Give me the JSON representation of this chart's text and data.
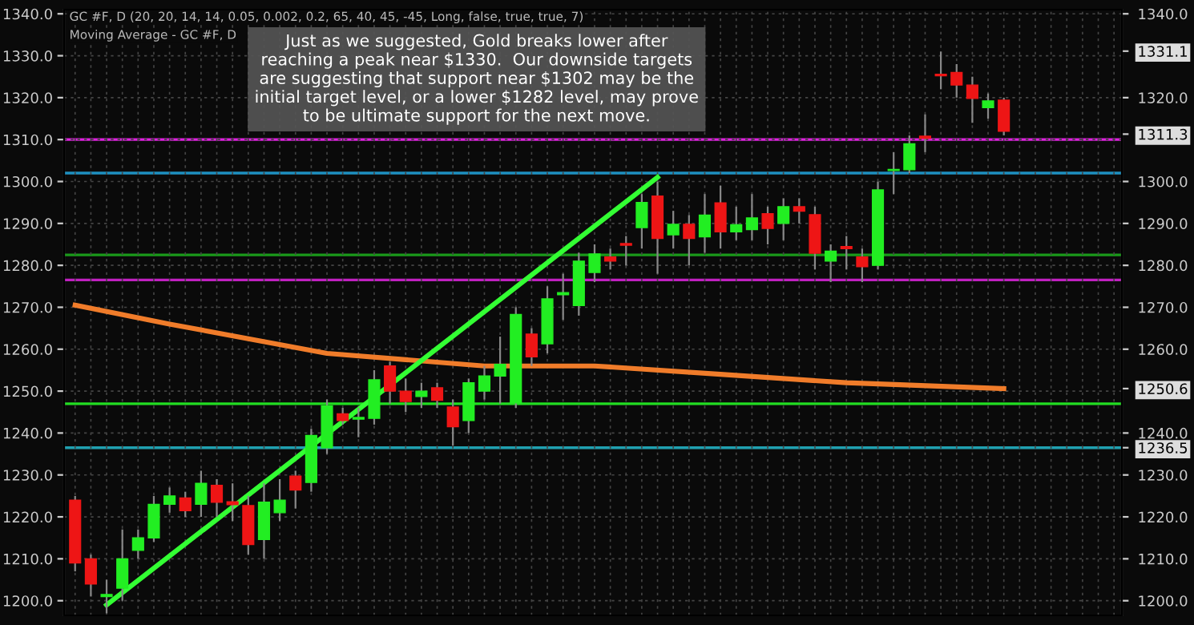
{
  "chart_data": {
    "type": "candlestick",
    "title": "GC #F, D (20, 20, 14, 14, 0.05, 0.002, 0.2, 65, 40, 45, -45, Long, false, true, true, 7)",
    "subtitle": "Moving Average - GC #F, D",
    "categories": [
      null,
      null,
      null,
      null,
      null,
      null,
      null,
      null,
      null,
      null,
      null,
      null,
      null,
      null,
      null,
      null,
      null,
      null,
      null,
      null,
      null,
      null,
      null,
      null,
      null,
      null,
      null,
      null,
      null,
      null,
      null,
      null,
      null,
      null,
      null,
      null,
      null,
      null,
      null,
      null,
      null,
      null,
      null,
      null,
      null,
      null,
      null,
      null,
      null,
      null,
      null,
      null,
      null,
      null,
      null,
      null,
      null,
      null,
      null,
      null,
      null,
      null,
      null,
      null,
      null,
      null,
      null
    ],
    "ohlc": [
      [
        1224,
        1225,
        1207,
        1209
      ],
      [
        1210,
        1211,
        1201,
        1204
      ],
      [
        1201,
        1205,
        1197,
        1201.5
      ],
      [
        1203,
        1217,
        1200,
        1210
      ],
      [
        1212,
        1217,
        1210,
        1215
      ],
      [
        1215,
        1225,
        1214,
        1223
      ],
      [
        1223,
        1227,
        1221,
        1225
      ],
      [
        1224.5,
        1226,
        1220,
        1221.5
      ],
      [
        1223,
        1231,
        1220,
        1228
      ],
      [
        1227.5,
        1229,
        1220,
        1223.5
      ],
      [
        1223.6,
        1228,
        1219,
        1222.9
      ],
      [
        1222.7,
        1225,
        1211,
        1213.4
      ],
      [
        1214.6,
        1228,
        1210,
        1223.5
      ],
      [
        1221,
        1229,
        1219,
        1224
      ],
      [
        1229.7,
        1231,
        1222,
        1226.4
      ],
      [
        1228.2,
        1241,
        1226,
        1239.4
      ],
      [
        1236.5,
        1248,
        1235,
        1246.5
      ],
      [
        1244.6,
        1246,
        1242,
        1243
      ],
      [
        1243.3,
        1246,
        1239,
        1243.7
      ],
      [
        1243.5,
        1255,
        1242,
        1252.7
      ],
      [
        1256,
        1257,
        1247,
        1250
      ],
      [
        1250,
        1253,
        1245,
        1247.5
      ],
      [
        1248.7,
        1252,
        1246,
        1250
      ],
      [
        1250.8,
        1252,
        1246,
        1247.8
      ],
      [
        1246.2,
        1248,
        1237,
        1241.5
      ],
      [
        1243,
        1253,
        1240,
        1252
      ],
      [
        1250,
        1256,
        1248,
        1253.6
      ],
      [
        1253.6,
        1263,
        1247,
        1256.4
      ],
      [
        1247.2,
        1270,
        1246,
        1268.3
      ],
      [
        1263.6,
        1265,
        1256,
        1258.2
      ],
      [
        1261.3,
        1275,
        1259,
        1272
      ],
      [
        1273,
        1278,
        1267,
        1273.5
      ],
      [
        1270.4,
        1283,
        1268,
        1281
      ],
      [
        1278.3,
        1285,
        1276,
        1282.7
      ],
      [
        1282,
        1284,
        1279,
        1281
      ],
      [
        1285.2,
        1287,
        1280,
        1284.8
      ],
      [
        1289,
        1297,
        1284,
        1295
      ],
      [
        1296.5,
        1300,
        1278,
        1286.4
      ],
      [
        1287.3,
        1293,
        1284,
        1289.8
      ],
      [
        1289.8,
        1292,
        1280,
        1286.4
      ],
      [
        1286.8,
        1297,
        1283,
        1292
      ],
      [
        1294.9,
        1299,
        1284,
        1288
      ],
      [
        1288,
        1294,
        1286,
        1289.7
      ],
      [
        1288.5,
        1297,
        1286,
        1291.3
      ],
      [
        1292.3,
        1294,
        1285,
        1288.8
      ],
      [
        1290,
        1296,
        1286,
        1294
      ],
      [
        1294,
        1296,
        1290,
        1292.9
      ],
      [
        1292.1,
        1294,
        1279,
        1282.9
      ],
      [
        1281,
        1285,
        1276,
        1283.4
      ],
      [
        1284.5,
        1287,
        1279,
        1284
      ],
      [
        1282,
        1284,
        1276,
        1279.7
      ],
      [
        1280,
        1300,
        1279,
        1298
      ],
      [
        1302.6,
        1307,
        1297,
        1302.9
      ],
      [
        1302.8,
        1311,
        1302,
        1309
      ],
      [
        1310.8,
        1316,
        1307,
        1310.3
      ],
      [
        1325.6,
        1331,
        1322,
        1325.2
      ],
      [
        1326,
        1328,
        1320,
        1323
      ],
      [
        1323,
        1325,
        1314,
        1319.8
      ],
      [
        1317.6,
        1321,
        1315,
        1319.2
      ],
      [
        1319.4,
        1320,
        1311,
        1312
      ],
      null,
      null,
      null,
      null,
      null,
      null,
      null
    ],
    "series": [
      {
        "type": "line",
        "color": "#f07c2a",
        "values": [
          1270.5,
          null,
          null,
          null,
          null,
          null,
          1266,
          null,
          null,
          null,
          null,
          null,
          null,
          null,
          null,
          null,
          1259,
          null,
          null,
          null,
          null,
          1257.5,
          null,
          null,
          null,
          null,
          1256,
          null,
          null,
          null,
          null,
          null,
          null,
          1256,
          null,
          null,
          null,
          null,
          null,
          null,
          null,
          1254,
          null,
          null,
          null,
          null,
          null,
          null,
          null,
          1252,
          null,
          null,
          null,
          null,
          null,
          null,
          null,
          null,
          null,
          1250.6,
          null,
          null,
          null,
          null,
          null,
          null,
          null
        ]
      },
      {
        "type": "line",
        "color": "#33ff33",
        "values": [
          null,
          null,
          1199,
          null,
          null,
          null,
          null,
          null,
          null,
          null,
          null,
          null,
          null,
          null,
          null,
          null,
          null,
          null,
          null,
          null,
          null,
          null,
          null,
          null,
          null,
          null,
          null,
          null,
          null,
          null,
          null,
          null,
          null,
          null,
          null,
          null,
          null,
          1301,
          null,
          null,
          null,
          null,
          null,
          null,
          null,
          null,
          null,
          null,
          null,
          null,
          null,
          null,
          null,
          null,
          null,
          null,
          null,
          null,
          null,
          null,
          null,
          null,
          null,
          null,
          null,
          null,
          null
        ]
      }
    ],
    "ref_lines": [
      {
        "axis": "y",
        "value": 1310,
        "color": "#e020e0"
      },
      {
        "axis": "y",
        "value": 1247,
        "color": "#22dd22"
      },
      {
        "axis": "y",
        "value": 1236.5,
        "color": "#20a0b0"
      },
      {
        "axis": "y",
        "value": 1302,
        "color": "#1e90c0"
      },
      {
        "axis": "y",
        "value": 1282.5,
        "color": "#1a9a1a"
      },
      {
        "axis": "y",
        "value": 1276.5,
        "color": "#c020c0"
      }
    ],
    "annotations": [
      "Just as we suggested, Gold breaks lower after\nreaching a peak near $1330.  Our downside targets\nare suggesting that support near $1302 may be the\ninitial target level, or a lower $1282 level, may prove\nto be ultimate support for the next move."
    ],
    "ylim": [
      1196.5,
      1341
    ],
    "yticks": [
      {
        "value": 1200,
        "label": "1200.0"
      },
      {
        "value": 1210,
        "label": "1210.0"
      },
      {
        "value": 1220,
        "label": "1220.0"
      },
      {
        "value": 1230,
        "label": "1230.0"
      },
      {
        "value": 1240,
        "label": "1240.0"
      },
      {
        "value": 1250,
        "label": "1250.0"
      },
      {
        "value": 1260,
        "label": "1260.0"
      },
      {
        "value": 1270,
        "label": "1270.0"
      },
      {
        "value": 1280,
        "label": "1280.0"
      },
      {
        "value": 1290,
        "label": "1290.0"
      },
      {
        "value": 1300,
        "label": "1300.0"
      },
      {
        "value": 1310,
        "label": "1310.0"
      },
      {
        "value": 1320,
        "label": "1320.0"
      },
      {
        "value": 1330,
        "label": "1330.0"
      },
      {
        "value": 1340,
        "label": "1340.0"
      }
    ],
    "y2lim": [
      1196.5,
      1341
    ],
    "y2ticks": [
      {
        "value": 1200,
        "label": "1200.0"
      },
      {
        "value": 1210,
        "label": "1210.0"
      },
      {
        "value": 1220,
        "label": "1220.0"
      },
      {
        "value": 1230,
        "label": "1230.0"
      },
      {
        "value": 1236.5,
        "label": "1236.5"
      },
      {
        "value": 1240,
        "label": "1240.0"
      },
      {
        "value": 1250.6,
        "label": "1250.6"
      },
      {
        "value": 1260,
        "label": "1260.0"
      },
      {
        "value": 1270,
        "label": "1270.0"
      },
      {
        "value": 1280,
        "label": "1280.0"
      },
      {
        "value": 1290,
        "label": "1290.0"
      },
      {
        "value": 1300,
        "label": "1300.0"
      },
      {
        "value": 1311.3,
        "label": "1311.3"
      },
      {
        "value": 1320,
        "label": "1320.0"
      },
      {
        "value": 1331.1,
        "label": "1331.1"
      },
      {
        "value": 1340,
        "label": "1340.0"
      }
    ],
    "grid": true
  }
}
